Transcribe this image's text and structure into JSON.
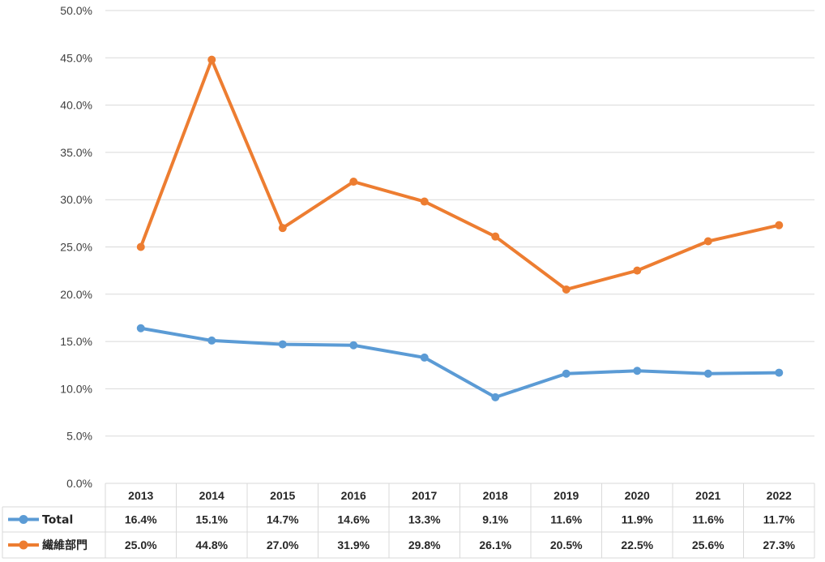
{
  "chart_data": {
    "type": "line",
    "categories": [
      "2013",
      "2014",
      "2015",
      "2016",
      "2017",
      "2018",
      "2019",
      "2020",
      "2021",
      "2022"
    ],
    "series": [
      {
        "name": "Total",
        "color": "#5B9BD5",
        "values": [
          16.4,
          15.1,
          14.7,
          14.6,
          13.3,
          9.1,
          11.6,
          11.9,
          11.6,
          11.7
        ],
        "labels": [
          "16.4%",
          "15.1%",
          "14.7%",
          "14.6%",
          "13.3%",
          "9.1%",
          "11.6%",
          "11.9%",
          "11.6%",
          "11.7%"
        ]
      },
      {
        "name": "繊維部門",
        "color": "#ED7D31",
        "values": [
          25.0,
          44.8,
          27.0,
          31.9,
          29.8,
          26.1,
          20.5,
          22.5,
          25.6,
          27.3
        ],
        "labels": [
          "25.0%",
          "44.8%",
          "27.0%",
          "31.9%",
          "29.8%",
          "26.1%",
          "20.5%",
          "22.5%",
          "25.6%",
          "27.3%"
        ]
      }
    ],
    "ylim": [
      0,
      50
    ],
    "yticks": [
      0,
      5,
      10,
      15,
      20,
      25,
      30,
      35,
      40,
      45,
      50
    ],
    "ytick_labels": [
      "0.0%",
      "5.0%",
      "10.0%",
      "15.0%",
      "20.0%",
      "25.0%",
      "30.0%",
      "35.0%",
      "40.0%",
      "45.0%",
      "50.0%"
    ],
    "grid": true,
    "legend": "data-table",
    "title": "",
    "xlabel": "",
    "ylabel": ""
  }
}
